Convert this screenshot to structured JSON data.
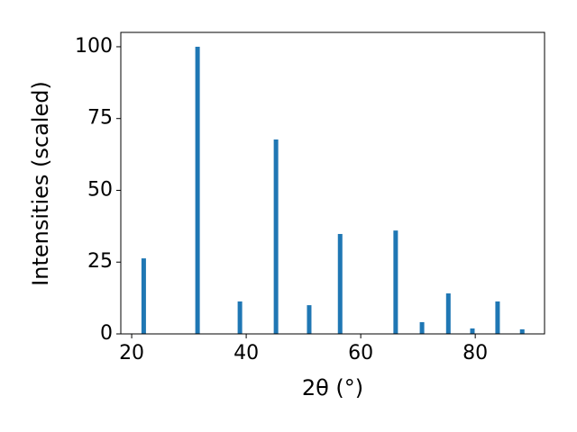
{
  "chart_data": {
    "type": "bar",
    "xlabel": "2θ (°)",
    "ylabel": "Intensities (scaled)",
    "x": [
      22.1,
      31.5,
      38.9,
      45.2,
      51.0,
      56.4,
      66.1,
      70.7,
      75.3,
      79.5,
      83.9,
      88.2
    ],
    "values": [
      26.3,
      100,
      11.3,
      67.7,
      10.0,
      34.8,
      36.0,
      4.1,
      14.1,
      1.9,
      11.3,
      1.6
    ],
    "color": "#1f77b4",
    "xlim": [
      18.1,
      92.1
    ],
    "xticks": [
      20,
      40,
      60,
      80
    ],
    "ylim": [
      0,
      105
    ],
    "yticks": [
      0,
      25,
      50,
      75,
      100
    ]
  }
}
